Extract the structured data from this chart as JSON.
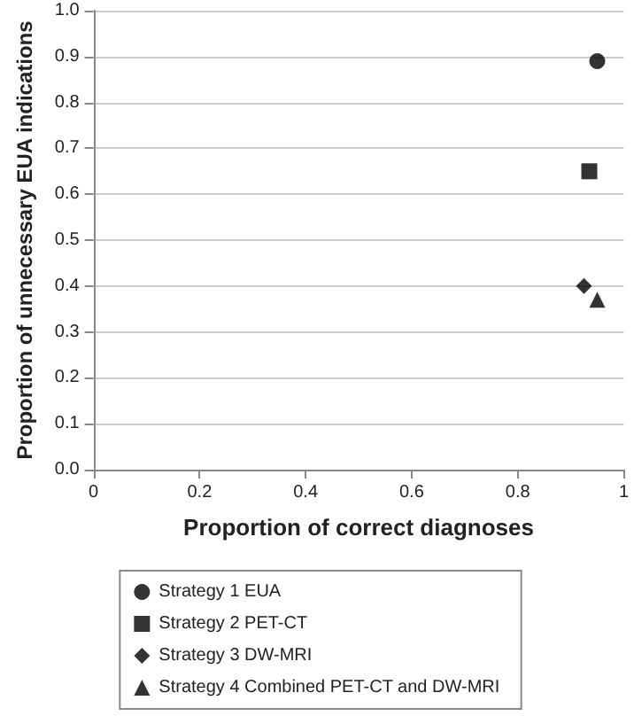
{
  "chart_data": {
    "type": "scatter",
    "xlabel": "Proportion of correct diagnoses",
    "ylabel": "Proportion of unnecessary EUA indications",
    "xlim": [
      0,
      1
    ],
    "xticks": [
      0,
      0.2,
      0.4,
      0.6,
      0.8,
      1
    ],
    "ylim": [
      0,
      1
    ],
    "yticks": [
      {
        "value": 0,
        "label": "0.0"
      },
      0.1,
      0.2,
      0.3,
      0.4,
      0.5,
      0.6,
      0.7,
      0.8,
      0.9,
      {
        "value": 1,
        "label": "1.0"
      }
    ],
    "grid": "y",
    "legend": "bottom",
    "series": [
      {
        "name": "Strategy 1 EUA",
        "color": "#000000",
        "marker": "circle",
        "x": [
          0.95
        ],
        "values": [
          0.89
        ]
      },
      {
        "name": "Strategy 2 PET-CT",
        "color": "#000000",
        "marker": "square",
        "x": [
          0.935
        ],
        "values": [
          0.65
        ]
      },
      {
        "name": "Strategy 3 DW-MRI",
        "color": "#000000",
        "marker": "diamond",
        "x": [
          0.925
        ],
        "values": [
          0.4
        ]
      },
      {
        "name": "Strategy 4 Combined PET-CT and DW-MRI",
        "color": "#000000",
        "marker": "triangle",
        "x": [
          0.95
        ],
        "values": [
          0.37
        ]
      }
    ]
  }
}
